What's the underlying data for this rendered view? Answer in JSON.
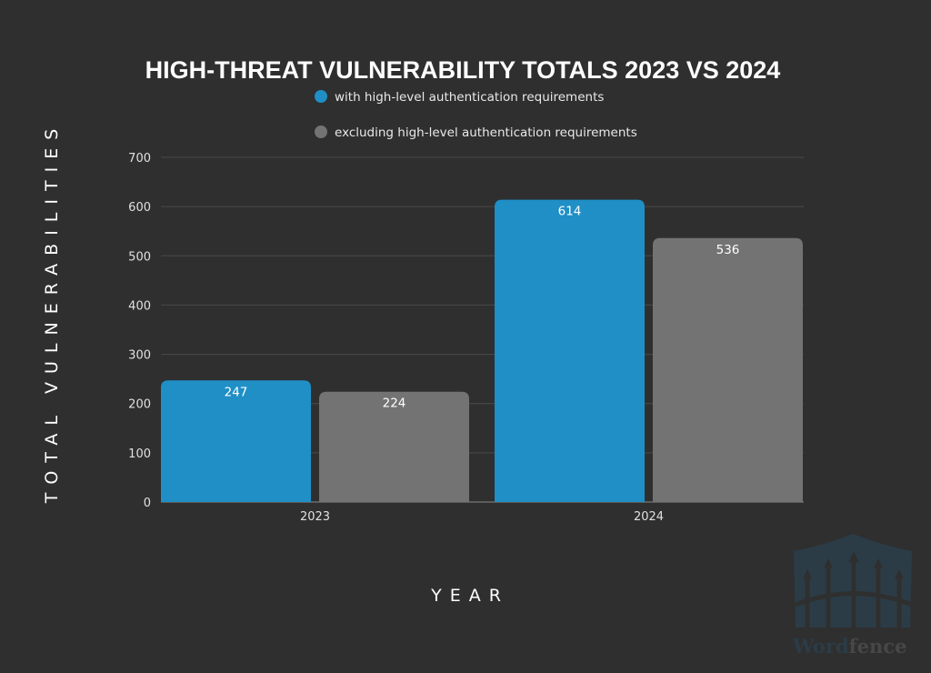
{
  "chart_data": {
    "type": "bar",
    "title": "HIGH-THREAT VULNERABILITY TOTALS 2023 VS 2024",
    "xlabel": "YEAR",
    "ylabel": "TOTAL VULNERABILITIES",
    "categories": [
      "2023",
      "2024"
    ],
    "series": [
      {
        "name": "with high-level authentication requirements",
        "values": [
          247,
          614
        ],
        "color": "#1f8fc6"
      },
      {
        "name": "excluding high-level authentication requirements",
        "values": [
          224,
          536
        ],
        "color": "#737373"
      }
    ],
    "ylim": [
      0,
      700
    ],
    "yticks": [
      0,
      100,
      200,
      300,
      400,
      500,
      600,
      700
    ],
    "grid": true,
    "legend": "top",
    "data_labels": true
  },
  "logo": {
    "text_part1": "Word",
    "text_part2": "fence"
  },
  "colors": {
    "background": "#2f2f2f",
    "grid": "#4a4a4a"
  }
}
